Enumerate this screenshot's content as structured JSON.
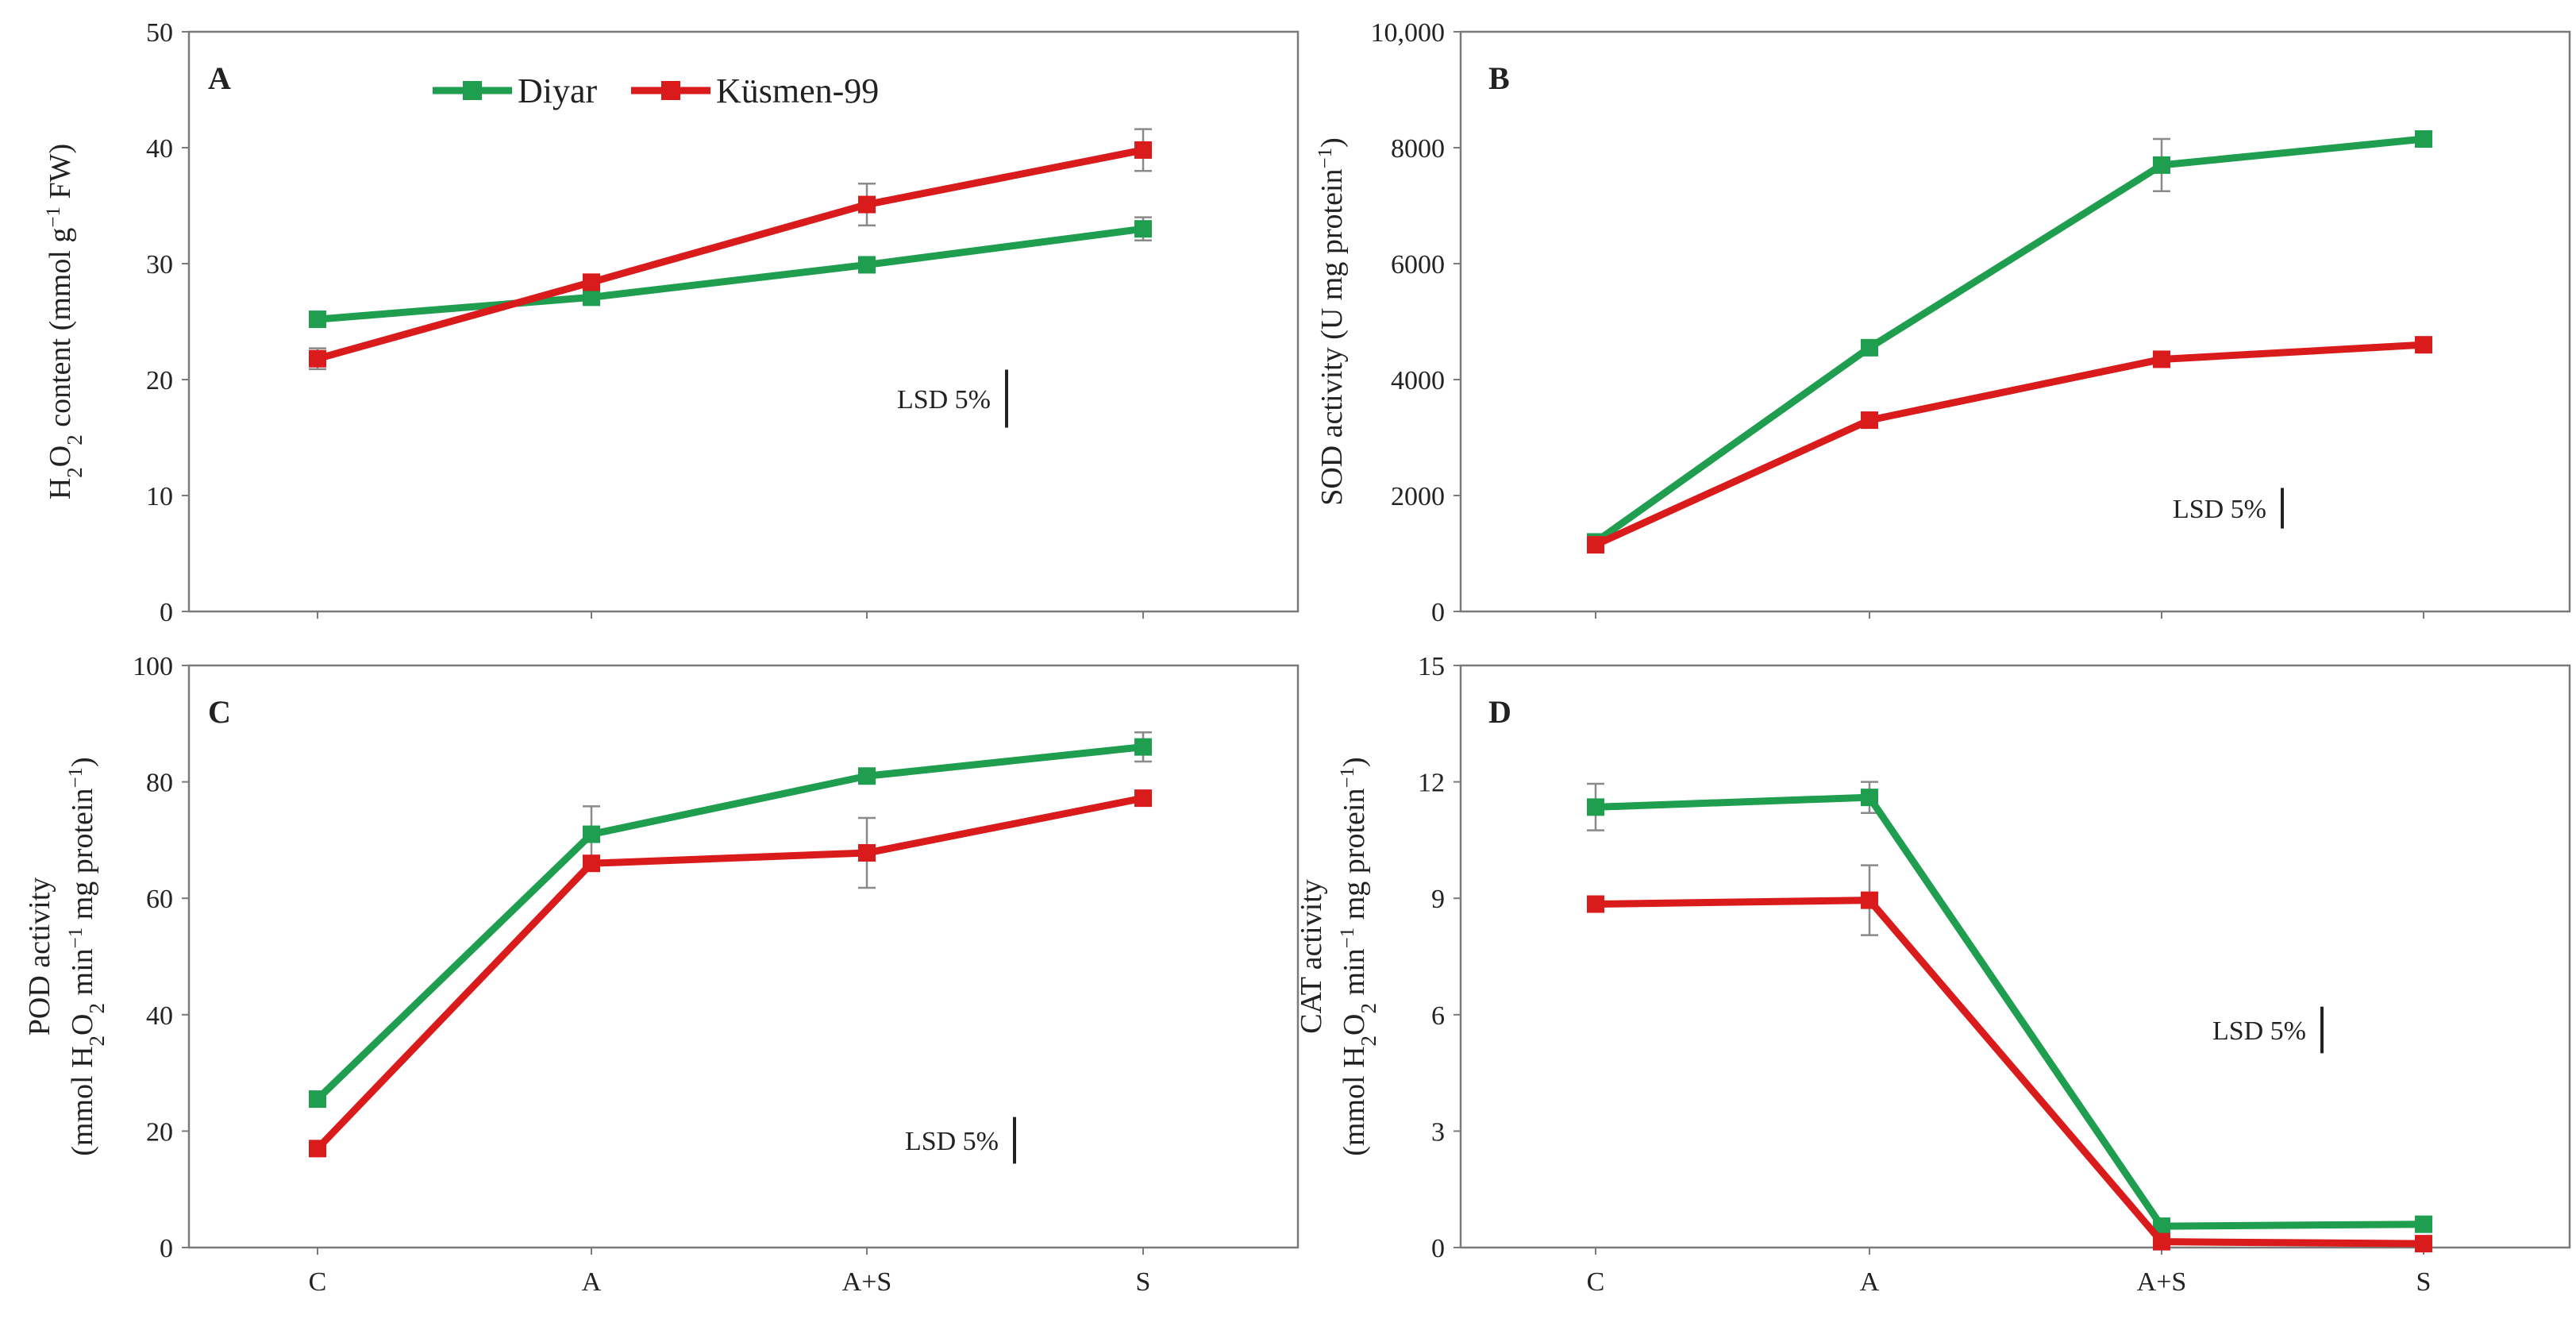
{
  "legend": {
    "entries": [
      {
        "name": "Diyar",
        "color": "#1f9e50"
      },
      {
        "name": "Küsmen-99",
        "color": "#d91b1b"
      }
    ]
  },
  "colors": {
    "diyar": "#1f9e50",
    "kusmen": "#d91b1b",
    "errorbar": "#8a8a8a",
    "frame": "#7a7a7a"
  },
  "chart_data": [
    {
      "panel": "A",
      "type": "line",
      "categories": [
        "C",
        "A",
        "A+S",
        "S"
      ],
      "ylim": [
        0,
        50
      ],
      "yticks": [
        "0",
        "10",
        "20",
        "30",
        "40",
        "50"
      ],
      "ylabel": {
        "line1": "",
        "parts": [
          {
            "t": "H",
            "s": "n"
          },
          {
            "t": "2",
            "s": "sub"
          },
          {
            "t": "O",
            "s": "n"
          },
          {
            "t": "2",
            "s": "sub"
          },
          {
            "t": " content (mmol g",
            "s": "n"
          },
          {
            "t": "−1",
            "s": "sup"
          },
          {
            "t": " FW)",
            "s": "n"
          }
        ]
      },
      "lsd_label": "LSD 5%",
      "lsd_value": 5,
      "series": [
        {
          "name": "Diyar",
          "values": [
            25.2,
            27.1,
            29.9,
            33.0
          ],
          "errors": [
            0.6,
            0.4,
            0.4,
            1.0
          ]
        },
        {
          "name": "Küsmen-99",
          "values": [
            21.8,
            28.4,
            35.1,
            39.8
          ],
          "errors": [
            0.9,
            0.5,
            1.8,
            1.8
          ]
        }
      ]
    },
    {
      "panel": "B",
      "type": "line",
      "categories": [
        "C",
        "A",
        "A+S",
        "S"
      ],
      "ylim": [
        0,
        10000
      ],
      "yticks": [
        "0",
        "2000",
        "4000",
        "6000",
        "8000",
        "10,000"
      ],
      "ylabel": {
        "line1": "",
        "parts": [
          {
            "t": "SOD activity (U mg protein",
            "s": "n"
          },
          {
            "t": "−1",
            "s": "sup"
          },
          {
            "t": ")",
            "s": "n"
          }
        ]
      },
      "lsd_label": "LSD 5%",
      "lsd_value": 700,
      "series": [
        {
          "name": "Diyar",
          "values": [
            1200,
            4550,
            7700,
            8150
          ],
          "errors": [
            60,
            80,
            450,
            60
          ]
        },
        {
          "name": "Küsmen-99",
          "values": [
            1150,
            3300,
            4350,
            4600
          ],
          "errors": [
            50,
            120,
            60,
            60
          ]
        }
      ]
    },
    {
      "panel": "C",
      "type": "line",
      "categories": [
        "C",
        "A",
        "A+S",
        "S"
      ],
      "ylim": [
        0,
        100
      ],
      "yticks": [
        "0",
        "20",
        "40",
        "60",
        "80",
        "100"
      ],
      "ylabel": {
        "line1": "POD activity",
        "parts": [
          {
            "t": "(mmol H",
            "s": "n"
          },
          {
            "t": "2",
            "s": "sub"
          },
          {
            "t": "O",
            "s": "n"
          },
          {
            "t": "2",
            "s": "sub"
          },
          {
            "t": " min",
            "s": "n"
          },
          {
            "t": "−1",
            "s": "sup"
          },
          {
            "t": " mg protein",
            "s": "n"
          },
          {
            "t": "−1",
            "s": "sup"
          },
          {
            "t": ")",
            "s": "n"
          }
        ]
      },
      "lsd_label": "LSD 5%",
      "lsd_value": 8,
      "series": [
        {
          "name": "Diyar",
          "values": [
            25.5,
            71.0,
            81.0,
            86.0
          ],
          "errors": [
            0.8,
            4.8,
            0.8,
            2.5
          ]
        },
        {
          "name": "Küsmen-99",
          "values": [
            17.0,
            66.0,
            67.8,
            77.2
          ],
          "errors": [
            0.6,
            0.8,
            6.0,
            0.8
          ]
        }
      ]
    },
    {
      "panel": "D",
      "type": "line",
      "categories": [
        "C",
        "A",
        "A+S",
        "S"
      ],
      "ylim": [
        0,
        15
      ],
      "yticks": [
        "0",
        "3",
        "6",
        "9",
        "12",
        "15"
      ],
      "ylabel": {
        "line1": "CAT activity",
        "parts": [
          {
            "t": "(mmol H",
            "s": "n"
          },
          {
            "t": "2",
            "s": "sub"
          },
          {
            "t": "O",
            "s": "n"
          },
          {
            "t": "2",
            "s": "sub"
          },
          {
            "t": " min",
            "s": "n"
          },
          {
            "t": "−1",
            "s": "sup"
          },
          {
            "t": " mg protein",
            "s": "n"
          },
          {
            "t": "−1",
            "s": "sup"
          },
          {
            "t": ")",
            "s": "n"
          }
        ]
      },
      "lsd_label": "LSD 5%",
      "lsd_value": 1.2,
      "series": [
        {
          "name": "Diyar",
          "values": [
            11.35,
            11.6,
            0.55,
            0.6
          ],
          "errors": [
            0.6,
            0.4,
            0.1,
            0.1
          ]
        },
        {
          "name": "Küsmen-99",
          "values": [
            8.85,
            8.95,
            0.15,
            0.1
          ],
          "errors": [
            0.2,
            0.9,
            0.05,
            0.05
          ]
        }
      ]
    }
  ]
}
